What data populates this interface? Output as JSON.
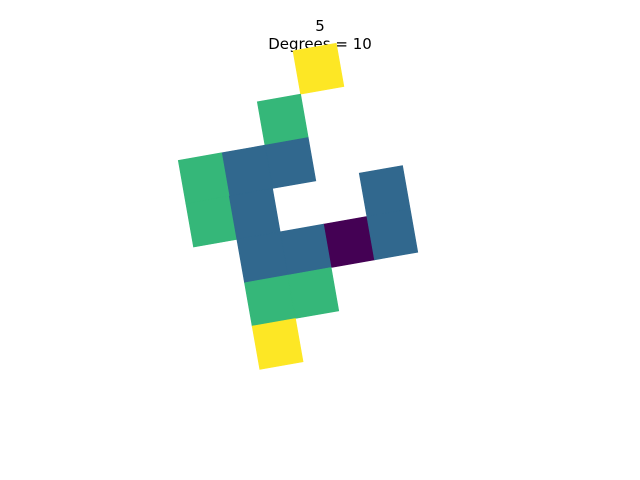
{
  "title": {
    "line1": "5",
    "line2": "Degrees = 10"
  },
  "grid": {
    "rotation_degrees": 10,
    "palette": {
      "0": "#440154",
      "1": "#31688e",
      "2": "#35b779",
      "3": "#fde725"
    },
    "cells": [
      {
        "row": -4,
        "col": 0,
        "value": 3
      },
      {
        "row": -3,
        "col": -1,
        "value": 2
      },
      {
        "row": -2,
        "col": -1,
        "value": 1
      },
      {
        "row": -2,
        "col": -2,
        "value": 1
      },
      {
        "row": -2,
        "col": -3,
        "value": 2
      },
      {
        "row": -1,
        "col": -3,
        "value": 2
      },
      {
        "row": -1,
        "col": -2,
        "value": 1
      },
      {
        "row": 0,
        "col": 0,
        "value": 0
      },
      {
        "row": -1,
        "col": 1,
        "value": 1
      },
      {
        "row": 0,
        "col": 1,
        "value": 1
      },
      {
        "row": 0,
        "col": -1,
        "value": 1
      },
      {
        "row": 0,
        "col": -2,
        "value": 1
      },
      {
        "row": 1,
        "col": -2,
        "value": 2
      },
      {
        "row": 1,
        "col": -1,
        "value": 2
      },
      {
        "row": 2,
        "col": -2,
        "value": 3
      }
    ]
  }
}
